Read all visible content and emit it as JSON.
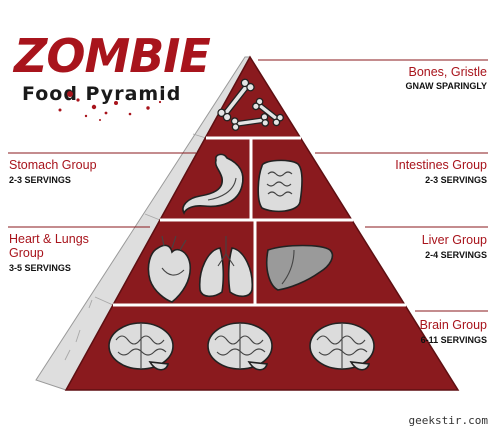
{
  "title": {
    "main": "ZOMBIE",
    "sub": "Food Pyramid"
  },
  "tiers": {
    "bones": {
      "name": "Bones, Gristle",
      "servings": "GNAW SPARINGLY"
    },
    "stomach": {
      "name": "Stomach Group",
      "servings": "2-3 SERVINGS"
    },
    "intestines": {
      "name": "Intestines Group",
      "servings": "2-3 SERVINGS"
    },
    "heart": {
      "name_line1": "Heart & Lungs",
      "name_line2": "Group",
      "servings": "3-5 SERVINGS"
    },
    "liver": {
      "name": "Liver Group",
      "servings": "2-4 SERVINGS"
    },
    "brain": {
      "name": "Brain Group",
      "servings": "6-11 SERVINGS"
    }
  },
  "credit": "geekstir.com",
  "colors": {
    "blood_red": "#8a1a1e",
    "title_red": "#a8141c",
    "side_gray": "#dedede"
  }
}
